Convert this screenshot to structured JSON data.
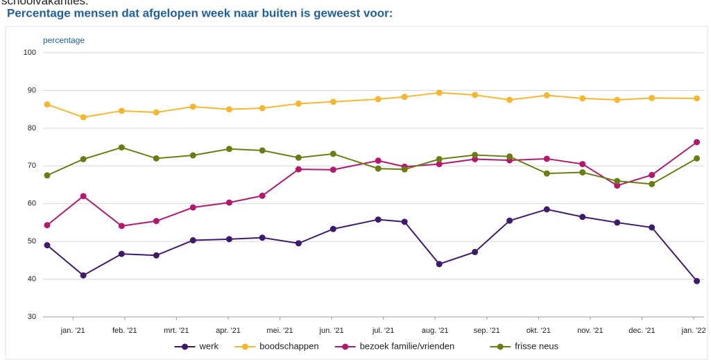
{
  "context": "schoolvakanties.",
  "chart_data": {
    "type": "line",
    "title": "Percentage mensen dat afgelopen week naar buiten is geweest voor:",
    "y_label": "percentage",
    "x": [
      0.5,
      1.2,
      1.94,
      2.61,
      3.32,
      4.02,
      4.66,
      5.36,
      6.03,
      6.9,
      7.41,
      8.08,
      8.77,
      9.44,
      10.16,
      10.85,
      11.52,
      12.19,
      13.06
    ],
    "xlim": [
      0.42,
      13.2
    ],
    "xticks": [
      {
        "value": 1,
        "label": "jan. '21"
      },
      {
        "value": 2,
        "label": "feb. '21"
      },
      {
        "value": 3,
        "label": "mrt. '21"
      },
      {
        "value": 4,
        "label": "apr. '21"
      },
      {
        "value": 5,
        "label": "mei. '21"
      },
      {
        "value": 6,
        "label": "jun. '21"
      },
      {
        "value": 7,
        "label": "jul. '21"
      },
      {
        "value": 8,
        "label": "aug. '21"
      },
      {
        "value": 9,
        "label": "sep. '21"
      },
      {
        "value": 10,
        "label": "okt. '21"
      },
      {
        "value": 11,
        "label": "nov. '21"
      },
      {
        "value": 12,
        "label": "dec. '21"
      },
      {
        "value": 13,
        "label": "jan. '22"
      }
    ],
    "ylim": [
      30,
      100
    ],
    "yticks": [
      30,
      40,
      50,
      60,
      70,
      80,
      90,
      100
    ],
    "grid": true,
    "legend": "bottom",
    "series": [
      {
        "name": "werk",
        "color": "#3d1a6e",
        "values": [
          49,
          41,
          46.7,
          46.3,
          50.3,
          50.6,
          51,
          49.5,
          53.3,
          55.8,
          55.2,
          44,
          47.2,
          55.5,
          58.5,
          56.5,
          55,
          53.7,
          39.5
        ]
      },
      {
        "name": "boodschappen",
        "color": "#f5b730",
        "values": [
          86.3,
          82.9,
          84.6,
          84.2,
          85.7,
          85,
          85.3,
          86.5,
          87,
          87.7,
          88.3,
          89.4,
          88.8,
          87.5,
          88.7,
          87.9,
          87.5,
          88,
          87.9
        ]
      },
      {
        "name": "bezoek familie/vrienden",
        "color": "#b5176e",
        "values": [
          54.3,
          62,
          54.1,
          55.4,
          59,
          60.3,
          62.1,
          69.1,
          69,
          71.4,
          69.8,
          70.5,
          71.8,
          71.5,
          71.9,
          70.5,
          64.8,
          67.6,
          76.3
        ]
      },
      {
        "name": "frisse neus",
        "color": "#6b7d12",
        "values": [
          67.5,
          71.8,
          74.9,
          72,
          72.8,
          74.5,
          74.1,
          72.2,
          73.2,
          69.3,
          69.1,
          71.8,
          72.9,
          72.5,
          68,
          68.3,
          66,
          65.2,
          72
        ]
      }
    ]
  }
}
